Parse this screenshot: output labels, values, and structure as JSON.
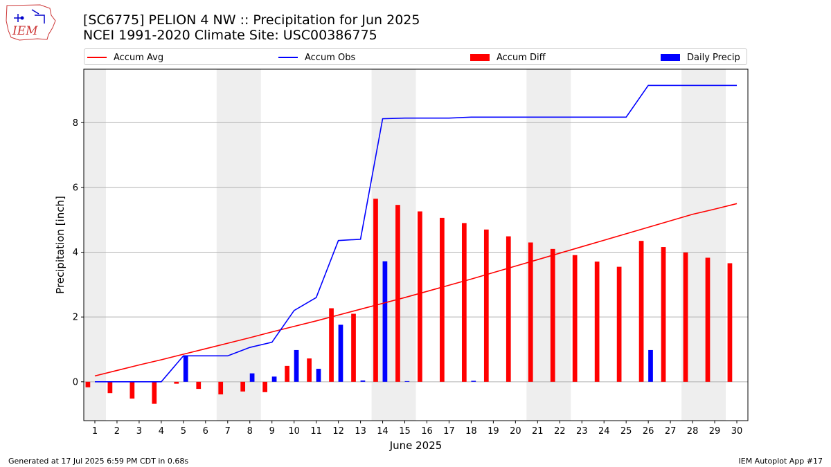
{
  "header": {
    "logo_text": "IEM",
    "title": "[SC6775] PELION 4 NW :: Precipitation for Jun 2025",
    "subtitle": "NCEI 1991-2020 Climate Site: USC00386775"
  },
  "legend": {
    "items": [
      {
        "label": "Accum Avg",
        "kind": "line",
        "color": "#ff0000"
      },
      {
        "label": "Accum Obs",
        "kind": "line",
        "color": "#0000ff"
      },
      {
        "label": "Accum Diff",
        "kind": "bar",
        "color": "#ff0000"
      },
      {
        "label": "Daily Precip",
        "kind": "bar",
        "color": "#0000ff"
      }
    ]
  },
  "footer": {
    "generated": "Generated at 17 Jul 2025 6:59 PM CDT in 0.68s",
    "app": "IEM Autoplot App #17"
  },
  "chart_data": {
    "type": "bar",
    "xlabel": "June 2025",
    "ylabel": "Precipitation [inch]",
    "xlim": [
      0.5,
      30.5
    ],
    "ylim": [
      -1.2,
      9.65
    ],
    "yticks": [
      0,
      2,
      4,
      6,
      8
    ],
    "grid": "horizontal",
    "legend_position": "top",
    "weekend_shading": [
      [
        0.5,
        1.5
      ],
      [
        6.5,
        8.5
      ],
      [
        13.5,
        15.5
      ],
      [
        20.5,
        22.5
      ],
      [
        27.5,
        29.5
      ]
    ],
    "shade_color": "#eeeeee",
    "categories": [
      1,
      2,
      3,
      4,
      5,
      6,
      7,
      8,
      9,
      10,
      11,
      12,
      13,
      14,
      15,
      16,
      17,
      18,
      19,
      20,
      21,
      22,
      23,
      24,
      25,
      26,
      27,
      28,
      29,
      30
    ],
    "series": [
      {
        "name": "Accum Avg",
        "kind": "line",
        "color": "#ff0000",
        "values": [
          0.18,
          0.35,
          0.52,
          0.68,
          0.85,
          1.02,
          1.19,
          1.36,
          1.54,
          1.71,
          1.88,
          2.06,
          2.24,
          2.42,
          2.6,
          2.79,
          2.98,
          3.17,
          3.37,
          3.57,
          3.77,
          3.97,
          4.17,
          4.37,
          4.57,
          4.77,
          4.97,
          5.17,
          5.33,
          5.5
        ]
      },
      {
        "name": "Accum Obs",
        "kind": "line",
        "color": "#0000ff",
        "values": [
          0,
          0,
          0,
          0,
          0.8,
          0.8,
          0.8,
          1.06,
          1.22,
          2.2,
          2.6,
          4.36,
          4.4,
          8.12,
          8.14,
          8.14,
          8.14,
          8.17,
          8.17,
          8.17,
          8.17,
          8.17,
          8.17,
          8.17,
          8.17,
          9.15,
          9.15,
          9.15,
          9.15,
          9.15
        ]
      },
      {
        "name": "Accum Diff",
        "kind": "bar",
        "color": "#ff0000",
        "values": [
          -0.17,
          -0.35,
          -0.52,
          -0.68,
          -0.06,
          -0.22,
          -0.39,
          -0.3,
          -0.32,
          0.49,
          0.72,
          2.27,
          2.1,
          5.65,
          5.46,
          5.26,
          5.06,
          4.9,
          4.7,
          4.49,
          4.3,
          4.1,
          3.91,
          3.71,
          3.55,
          4.35,
          4.16,
          3.99,
          3.83,
          3.66
        ]
      },
      {
        "name": "Daily Precip",
        "kind": "bar",
        "color": "#0000ff",
        "values": [
          0,
          0,
          0,
          0,
          0.8,
          0,
          0,
          0.26,
          0.16,
          0.98,
          0.4,
          1.76,
          0.04,
          3.72,
          0.02,
          0,
          0,
          0.03,
          0,
          0,
          0,
          0,
          0,
          0,
          0,
          0.98,
          0,
          0,
          0,
          0
        ]
      }
    ]
  }
}
